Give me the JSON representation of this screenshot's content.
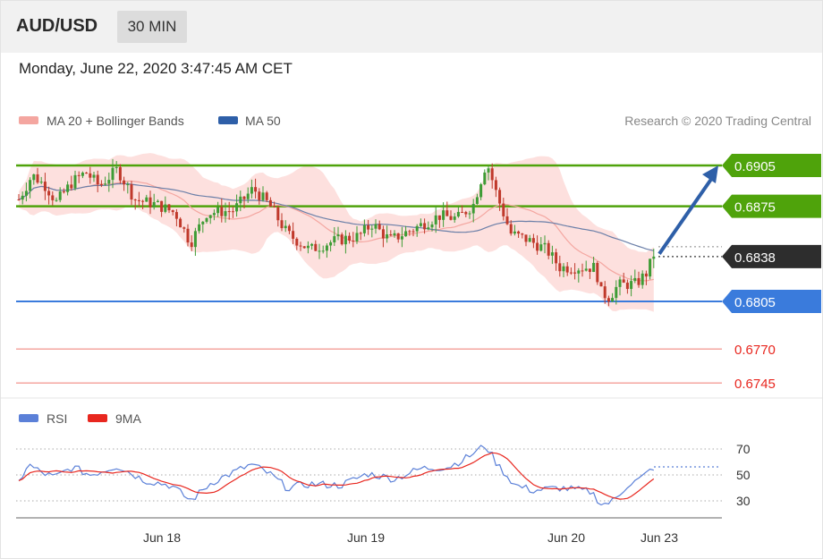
{
  "header": {
    "pair": "AUD/USD",
    "timeframe": "30 MIN"
  },
  "datetime": "Monday, June 22, 2020 3:47:45 AM CET",
  "legend": {
    "bollinger": {
      "label": "MA 20 + Bollinger Bands",
      "color": "#f08080"
    },
    "ma50": {
      "label": "MA 50",
      "color": "#2e5fa8"
    },
    "credit": "Research © 2020 Trading Central"
  },
  "rsi_legend": {
    "rsi": {
      "label": "RSI",
      "color": "#5b80d8"
    },
    "ma9": {
      "label": "9MA",
      "color": "#e8271f"
    }
  },
  "colors": {
    "up": "#3e9c35",
    "down": "#c0392b",
    "resistance": "#4fa30b",
    "pivot": "#3a7bdc",
    "support": "#e8271f",
    "last": "#2d2d2d"
  },
  "chart_data": [
    {
      "type": "candlestick",
      "price_range": [
        0.6734,
        0.6922
      ],
      "levels": [
        {
          "value": 0.6905,
          "label": "0.6905",
          "kind": "resistance"
        },
        {
          "value": 0.6875,
          "label": "0.6875",
          "kind": "resistance"
        },
        {
          "value": 0.6838,
          "label": "0.6838",
          "kind": "last"
        },
        {
          "value": 0.6805,
          "label": "0.6805",
          "kind": "pivot"
        },
        {
          "value": 0.677,
          "label": "0.6770",
          "kind": "support"
        },
        {
          "value": 0.6745,
          "label": "0.6745",
          "kind": "support"
        }
      ],
      "projection": {
        "from": 0.684,
        "to": 0.6905
      },
      "series": [
        {
          "name": "MA 20 + Bollinger Bands"
        },
        {
          "name": "MA 50"
        }
      ]
    },
    {
      "type": "line",
      "ylim": [
        20,
        80
      ],
      "yticks": [
        "70",
        "50",
        "30"
      ],
      "guides": [
        70,
        50,
        30
      ],
      "series": [
        {
          "name": "RSI"
        },
        {
          "name": "9MA"
        }
      ]
    }
  ],
  "x_axis": {
    "ticks": [
      "Jun 18",
      "Jun 19",
      "Jun 20",
      "Jun 23"
    ]
  }
}
